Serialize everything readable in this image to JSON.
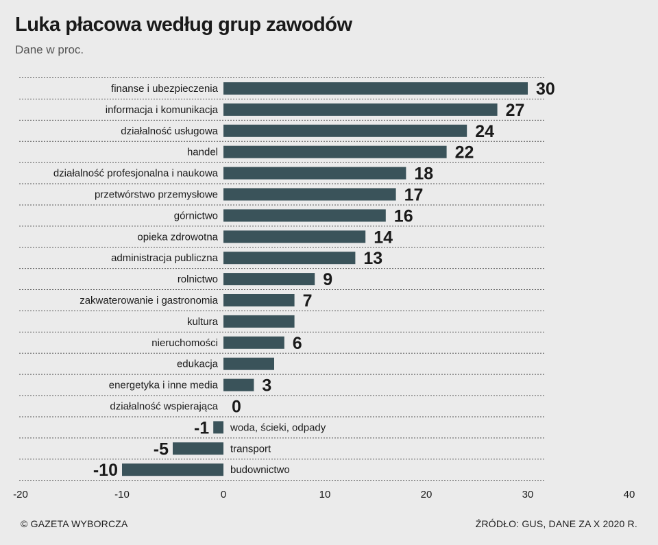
{
  "header": {
    "title": "Luka płacowa według grup zawodów",
    "subtitle": "Dane w proc."
  },
  "footer": {
    "credit": "© GAZETA WYBORCZA",
    "source": "ŹRÓDŁO: GUS, DANE ZA X 2020 R."
  },
  "colors": {
    "bar": "#3a535a",
    "background": "#ebebeb",
    "gridline": "#555555"
  },
  "chart_data": {
    "type": "bar",
    "orientation": "horizontal",
    "title": "Luka płacowa według grup zawodów",
    "subtitle": "Dane w proc.",
    "xlim": [
      -20,
      40
    ],
    "xticks": [
      -20,
      -10,
      0,
      10,
      20,
      30,
      40
    ],
    "grid": "dotted horizontal separators",
    "categories": [
      "finanse i ubezpieczenia",
      "informacja i komunikacja",
      "działalność usługowa",
      "handel",
      "działalność profesjonalna i naukowa",
      "przetwórstwo przemysłowe",
      "górnictwo",
      "opieka zdrowotna",
      "administracja publiczna",
      "rolnictwo",
      "zakwaterowanie i gastronomia",
      "kultura",
      "nieruchomości",
      "edukacja",
      "energetyka i inne media",
      "działalność wspierająca",
      "woda, ścieki, odpady",
      "transport",
      "budownictwo"
    ],
    "values": [
      30,
      27,
      24,
      22,
      18,
      17,
      16,
      14,
      13,
      9,
      7,
      7,
      6,
      5,
      3,
      0,
      -1,
      -5,
      -10
    ],
    "value_labels": [
      "30",
      "27",
      "24",
      "22",
      "18",
      "17",
      "16",
      "14",
      "13",
      "9",
      "7",
      "",
      "6",
      "",
      "3",
      "0",
      "-1",
      "-5",
      "-10"
    ]
  }
}
